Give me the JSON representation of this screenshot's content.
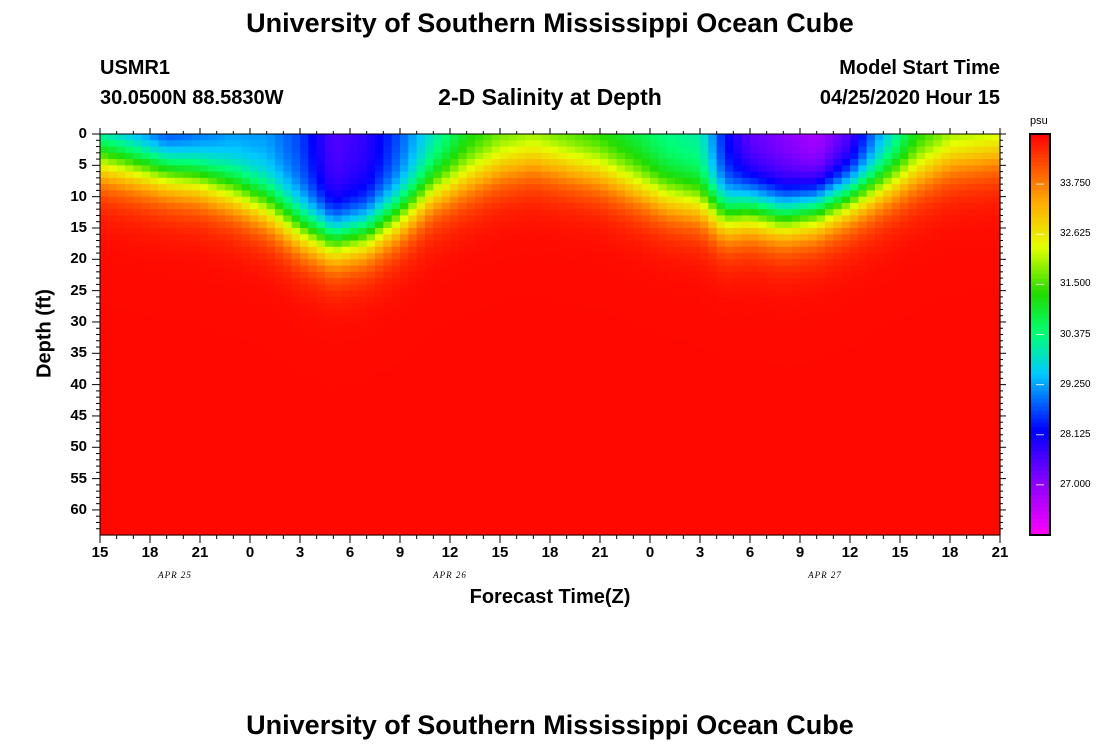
{
  "page": {
    "title_top": "University of Southern Mississippi Ocean Cube",
    "title_bottom": "University of Southern Mississippi Ocean Cube",
    "station_id": "USMR1",
    "station_coords": "30.0500N 88.5830W",
    "model_start_label": "Model Start Time",
    "model_start_value": "04/25/2020 Hour 15",
    "plot_title": "2-D Salinity at Depth"
  },
  "chart_data": {
    "type": "heatmap",
    "title": "2-D Salinity at Depth",
    "xlabel": "Forecast Time(Z)",
    "ylabel": "Depth (ft)",
    "x_unit": "forecast hours from 04/25/2020 15Z",
    "xlim": [
      0,
      54
    ],
    "ylim": [
      0,
      64
    ],
    "x_tick_labels": [
      "15",
      "18",
      "21",
      "0",
      "3",
      "6",
      "9",
      "12",
      "15",
      "18",
      "21",
      "0",
      "3",
      "6",
      "9",
      "12",
      "15",
      "18",
      "21"
    ],
    "y_tick_labels": [
      "0",
      "5",
      "10",
      "15",
      "20",
      "25",
      "30",
      "35",
      "40",
      "45",
      "50",
      "55",
      "60"
    ],
    "date_labels": [
      {
        "text": "APR 25",
        "hour": 4.5
      },
      {
        "text": "APR 26",
        "hour": 21
      },
      {
        "text": "APR 27",
        "hour": 43.5
      }
    ],
    "colorbar": {
      "unit": "psu",
      "min": 25.875,
      "max": 34.875,
      "ticks": [
        "33.750",
        "32.625",
        "31.500",
        "30.375",
        "29.250",
        "28.125",
        "27.000"
      ]
    },
    "columns": [
      {
        "hour": 0,
        "mlt": 4,
        "smin": 29.0
      },
      {
        "hour": 2,
        "mlt": 5,
        "smin": 28.6
      },
      {
        "hour": 4,
        "mlt": 6,
        "smin": 28.0
      },
      {
        "hour": 6,
        "mlt": 7,
        "smin": 28.5
      },
      {
        "hour": 8,
        "mlt": 9,
        "smin": 29.0
      },
      {
        "hour": 10,
        "mlt": 11.5,
        "smin": 29.1
      },
      {
        "hour": 12,
        "mlt": 15,
        "smin": 28.6
      },
      {
        "hour": 14,
        "mlt": 17,
        "smin": 27.5
      },
      {
        "hour": 16,
        "mlt": 16,
        "smin": 27.8
      },
      {
        "hour": 18,
        "mlt": 13,
        "smin": 28.7
      },
      {
        "hour": 20,
        "mlt": 9,
        "smin": 29.8
      },
      {
        "hour": 22,
        "mlt": 7,
        "smin": 30.8
      },
      {
        "hour": 24,
        "mlt": 5,
        "smin": 31.2
      },
      {
        "hour": 26,
        "mlt": 4,
        "smin": 31.3
      },
      {
        "hour": 28,
        "mlt": 5,
        "smin": 31.1
      },
      {
        "hour": 30,
        "mlt": 6,
        "smin": 30.9
      },
      {
        "hour": 32,
        "mlt": 8,
        "smin": 30.6
      },
      {
        "hour": 34,
        "mlt": 10,
        "smin": 30.2
      },
      {
        "hour": 36,
        "mlt": 11,
        "smin": 30.0
      },
      {
        "hour": 37.5,
        "mlt": 13,
        "smin": 28.2
      },
      {
        "hour": 39,
        "mlt": 12,
        "smin": 27.3
      },
      {
        "hour": 41,
        "mlt": 13,
        "smin": 27.0
      },
      {
        "hour": 43,
        "mlt": 12,
        "smin": 26.6
      },
      {
        "hour": 45,
        "mlt": 10,
        "smin": 27.4
      },
      {
        "hour": 47,
        "mlt": 8,
        "smin": 29.2
      },
      {
        "hour": 49,
        "mlt": 6,
        "smin": 30.8
      },
      {
        "hour": 51,
        "mlt": 4,
        "smin": 31.3
      },
      {
        "hour": 54,
        "mlt": 3,
        "smin": 31.4
      }
    ],
    "deep_salinity": 34.8
  }
}
